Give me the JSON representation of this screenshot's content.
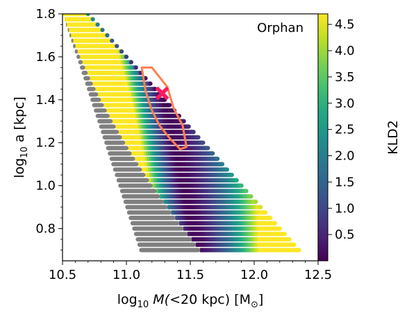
{
  "chart_data": {
    "type": "heatmap",
    "panel_label": "Orphan",
    "xlabel_parts": [
      "log",
      "10",
      " M(",
      "<",
      "20 kpc) [M",
      "⊙",
      "]"
    ],
    "ylabel_parts": [
      "log",
      "10",
      " a [kpc]"
    ],
    "colorbar_label": "KLD2",
    "xlim": [
      10.5,
      12.5
    ],
    "ylim": [
      0.65,
      1.8
    ],
    "x_ticks": [
      "10.5",
      "11.0",
      "11.5",
      "12.0",
      "12.5"
    ],
    "y_ticks": [
      "0.8",
      "1.0",
      "1.2",
      "1.4",
      "1.6",
      "1.8"
    ],
    "colorbar_range": [
      0.0,
      4.7
    ],
    "colorbar_ticks": [
      "0.5",
      "1.0",
      "1.5",
      "2.0",
      "2.5",
      "3.0",
      "3.5",
      "4.0",
      "4.5"
    ],
    "colormap": "viridis",
    "masked_color": "#808080",
    "grid_rows": {
      "log_a_start": 0.7,
      "log_a_end": 1.8,
      "count": 45,
      "left_edge_logM_at_top": 10.5,
      "left_edge_logM_at_bottom": 11.1,
      "right_edge_logM_at_top": 10.7,
      "right_edge_logM_at_bottom": 12.35,
      "gray_fraction_at_bottom": 0.38,
      "gray_fraction_at_top": 0.0
    },
    "valley": {
      "description_points": [
        [
          11.1,
          1.8
        ],
        [
          11.3,
          1.4
        ],
        [
          11.55,
          0.7
        ]
      ],
      "min_value": 0.05
    },
    "contour": {
      "color": "#ff7f50",
      "points": [
        [
          11.12,
          1.55
        ],
        [
          11.2,
          1.55
        ],
        [
          11.32,
          1.46
        ],
        [
          11.37,
          1.36
        ],
        [
          11.44,
          1.28
        ],
        [
          11.47,
          1.18
        ],
        [
          11.42,
          1.17
        ],
        [
          11.34,
          1.22
        ],
        [
          11.26,
          1.28
        ],
        [
          11.2,
          1.35
        ],
        [
          11.15,
          1.44
        ],
        [
          11.12,
          1.55
        ]
      ]
    },
    "best_fit": {
      "x": 11.28,
      "y": 1.43,
      "color": "#ff1a5e",
      "marker": "x"
    },
    "grid": false
  }
}
